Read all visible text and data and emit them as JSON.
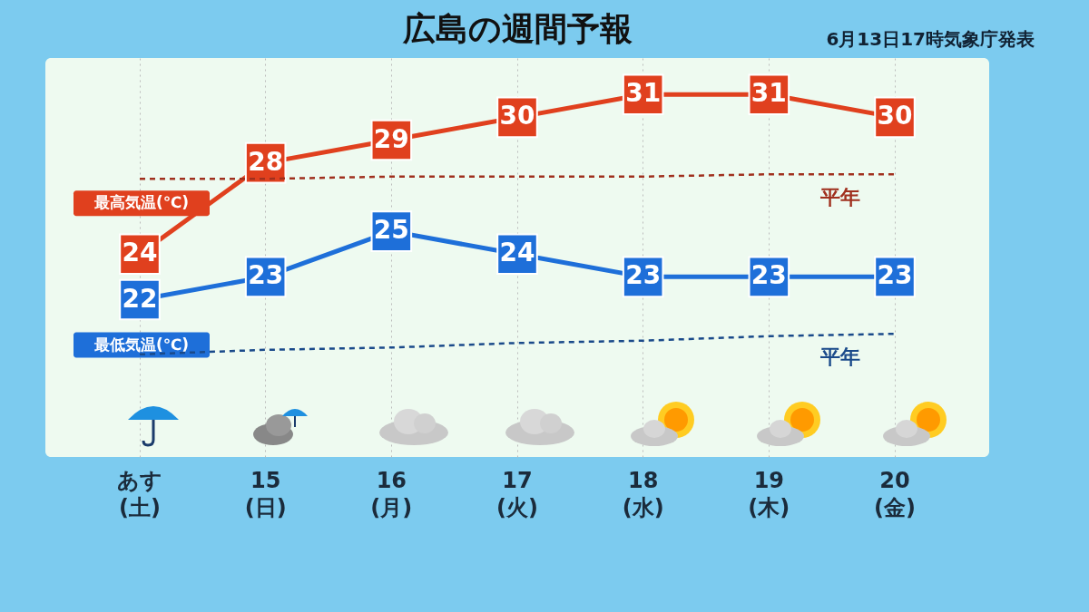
{
  "chart_data": {
    "type": "line",
    "title": "広島の週間予報",
    "annotations": [
      "6月13日17時気象庁発表"
    ],
    "categories": [
      "あす\n(土)",
      "15\n(日)",
      "16\n(月)",
      "17\n(火)",
      "18\n(水)",
      "19\n(木)",
      "20\n(金)"
    ],
    "series": [
      {
        "name": "最高気温(℃)",
        "color": "#e0401e",
        "values": [
          24,
          28,
          29,
          30,
          31,
          31,
          30
        ],
        "value_labels": [
          "24",
          "28",
          "29",
          "30",
          "31",
          "31",
          "30"
        ],
        "marker": "square",
        "line_style": "solid"
      },
      {
        "name": "最低気温(℃)",
        "color": "#1e6fd9",
        "values": [
          22,
          23,
          25,
          24,
          23,
          23,
          23
        ],
        "value_labels": [
          "22",
          "23",
          "25",
          "24",
          "23",
          "23",
          "23"
        ],
        "marker": "square",
        "line_style": "solid"
      },
      {
        "name": "平年",
        "color": "#a0301e",
        "values": [
          27.3,
          27.3,
          27.4,
          27.4,
          27.4,
          27.5,
          27.5
        ],
        "line_style": "dashed"
      },
      {
        "name": "平年",
        "color": "#1a4a8a",
        "values": [
          19.6,
          19.8,
          19.9,
          20.1,
          20.2,
          20.4,
          20.5
        ],
        "line_style": "dashed"
      }
    ],
    "grid": true
  }
}
